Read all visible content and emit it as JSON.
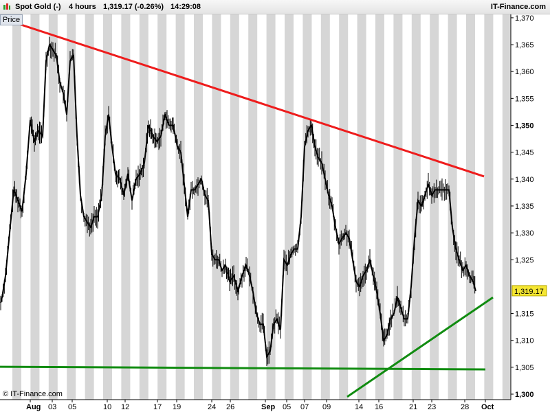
{
  "header": {
    "instrument": "Spot Gold (-)",
    "timeframe": "4 hours",
    "last": "1,319.17 (-0.26%)",
    "time": "14:29:08",
    "brand": "IT-Finance.com"
  },
  "price_badge": "Price",
  "copyright": "© IT-Finance.com",
  "last_price_label": "1,319.17",
  "colors": {
    "background": "#ffffff",
    "stripe": "#d6d6d6",
    "candle": "#000000",
    "resistance": "#ee1c1c",
    "support": "#118c11",
    "last_badge": "#f5e633"
  },
  "chart_data": {
    "type": "line",
    "title": "Spot Gold (-)",
    "ylim": [
      1300,
      1370
    ],
    "yticks": [
      {
        "value": 1370,
        "label": "1,370",
        "bold": false
      },
      {
        "value": 1365,
        "label": "1,365",
        "bold": false
      },
      {
        "value": 1360,
        "label": "1,360",
        "bold": false
      },
      {
        "value": 1355,
        "label": "1,355",
        "bold": false
      },
      {
        "value": 1350,
        "label": "1,350",
        "bold": true
      },
      {
        "value": 1345,
        "label": "1,345",
        "bold": false
      },
      {
        "value": 1340,
        "label": "1,340",
        "bold": false
      },
      {
        "value": 1335,
        "label": "1,335",
        "bold": false
      },
      {
        "value": 1330,
        "label": "1,330",
        "bold": false
      },
      {
        "value": 1325,
        "label": "1,325",
        "bold": false
      },
      {
        "value": 1315,
        "label": "1,315",
        "bold": false
      },
      {
        "value": 1310,
        "label": "1,310",
        "bold": false
      },
      {
        "value": 1305,
        "label": "1,305",
        "bold": false
      },
      {
        "value": 1300,
        "label": "1,300",
        "bold": true
      }
    ],
    "xticks": [
      {
        "label": "Aug",
        "bold": true
      },
      {
        "label": "03",
        "bold": false
      },
      {
        "label": "05",
        "bold": false
      },
      {
        "label": "10",
        "bold": false
      },
      {
        "label": "12",
        "bold": false
      },
      {
        "label": "17",
        "bold": false
      },
      {
        "label": "19",
        "bold": false
      },
      {
        "label": "24",
        "bold": false
      },
      {
        "label": "26",
        "bold": false
      },
      {
        "label": "Sep",
        "bold": true
      },
      {
        "label": "05",
        "bold": false
      },
      {
        "label": "07",
        "bold": false
      },
      {
        "label": "09",
        "bold": false
      },
      {
        "label": "14",
        "bold": false
      },
      {
        "label": "16",
        "bold": false
      },
      {
        "label": "21",
        "bold": false
      },
      {
        "label": "23",
        "bold": false
      },
      {
        "label": "28",
        "bold": false
      },
      {
        "label": "Oct",
        "bold": true
      }
    ],
    "price_path": [
      [
        1,
        1317
      ],
      [
        3,
        1318
      ],
      [
        8,
        1322
      ],
      [
        14,
        1330
      ],
      [
        20,
        1338
      ],
      [
        26,
        1336
      ],
      [
        32,
        1334
      ],
      [
        38,
        1341
      ],
      [
        44,
        1351
      ],
      [
        50,
        1347
      ],
      [
        56,
        1349
      ],
      [
        62,
        1348
      ],
      [
        67,
        1362
      ],
      [
        72,
        1365
      ],
      [
        77,
        1364
      ],
      [
        82,
        1363
      ],
      [
        87,
        1358
      ],
      [
        92,
        1356
      ],
      [
        97,
        1352
      ],
      [
        102,
        1362
      ],
      [
        107,
        1363
      ],
      [
        112,
        1348
      ],
      [
        117,
        1337
      ],
      [
        122,
        1333
      ],
      [
        127,
        1332
      ],
      [
        132,
        1331
      ],
      [
        137,
        1333
      ],
      [
        142,
        1333
      ],
      [
        148,
        1337
      ],
      [
        153,
        1348
      ],
      [
        158,
        1352
      ],
      [
        163,
        1346
      ],
      [
        168,
        1341
      ],
      [
        174,
        1340
      ],
      [
        180,
        1337
      ],
      [
        186,
        1341
      ],
      [
        192,
        1336
      ],
      [
        198,
        1340
      ],
      [
        204,
        1341
      ],
      [
        210,
        1343
      ],
      [
        216,
        1350
      ],
      [
        222,
        1348
      ],
      [
        228,
        1347
      ],
      [
        234,
        1348
      ],
      [
        240,
        1352
      ],
      [
        246,
        1350
      ],
      [
        252,
        1350
      ],
      [
        258,
        1346
      ],
      [
        263,
        1345
      ],
      [
        268,
        1339
      ],
      [
        273,
        1333
      ],
      [
        278,
        1338
      ],
      [
        283,
        1338
      ],
      [
        288,
        1339
      ],
      [
        293,
        1340
      ],
      [
        298,
        1337
      ],
      [
        303,
        1336
      ],
      [
        308,
        1326
      ],
      [
        313,
        1325
      ],
      [
        318,
        1325
      ],
      [
        323,
        1323
      ],
      [
        328,
        1324
      ],
      [
        334,
        1321
      ],
      [
        340,
        1322
      ],
      [
        346,
        1319
      ],
      [
        352,
        1322
      ],
      [
        358,
        1324
      ],
      [
        363,
        1322
      ],
      [
        368,
        1319
      ],
      [
        373,
        1315
      ],
      [
        378,
        1313
      ],
      [
        383,
        1313
      ],
      [
        388,
        1307
      ],
      [
        393,
        1308
      ],
      [
        398,
        1313
      ],
      [
        403,
        1314
      ],
      [
        408,
        1312
      ],
      [
        413,
        1325
      ],
      [
        418,
        1324
      ],
      [
        423,
        1326
      ],
      [
        428,
        1327
      ],
      [
        433,
        1327
      ],
      [
        438,
        1333
      ],
      [
        443,
        1346
      ],
      [
        448,
        1349
      ],
      [
        453,
        1350
      ],
      [
        458,
        1346
      ],
      [
        463,
        1344
      ],
      [
        468,
        1343
      ],
      [
        473,
        1340
      ],
      [
        478,
        1337
      ],
      [
        483,
        1335
      ],
      [
        488,
        1331
      ],
      [
        493,
        1328
      ],
      [
        498,
        1329
      ],
      [
        503,
        1330
      ],
      [
        508,
        1329
      ],
      [
        513,
        1325
      ],
      [
        518,
        1321
      ],
      [
        523,
        1320
      ],
      [
        528,
        1322
      ],
      [
        533,
        1323
      ],
      [
        538,
        1325
      ],
      [
        543,
        1322
      ],
      [
        548,
        1319
      ],
      [
        553,
        1315
      ],
      [
        558,
        1310
      ],
      [
        563,
        1311
      ],
      [
        568,
        1314
      ],
      [
        573,
        1315
      ],
      [
        578,
        1318
      ],
      [
        583,
        1316
      ],
      [
        588,
        1314
      ],
      [
        593,
        1314
      ],
      [
        598,
        1320
      ],
      [
        603,
        1329
      ],
      [
        608,
        1336
      ],
      [
        613,
        1335
      ],
      [
        618,
        1337
      ],
      [
        623,
        1339
      ],
      [
        628,
        1337
      ],
      [
        633,
        1338
      ],
      [
        638,
        1338
      ],
      [
        643,
        1338
      ],
      [
        648,
        1338
      ],
      [
        653,
        1338
      ],
      [
        658,
        1331
      ],
      [
        663,
        1327
      ],
      [
        668,
        1325
      ],
      [
        673,
        1323
      ],
      [
        678,
        1324
      ],
      [
        683,
        1322
      ],
      [
        688,
        1321
      ],
      [
        692,
        1319.17
      ]
    ],
    "lines": [
      {
        "name": "",
        "x1": 0,
        "y1": 1370,
        "x2": 704,
        "y2": 1340.5,
        "color": "#ee1c1c"
      },
      {
        "name": "",
        "x1": 0,
        "y1": 1305.1,
        "x2": 706,
        "y2": 1304.6,
        "color": "#118c11"
      },
      {
        "name": "",
        "x1": 505,
        "y1": 1299.5,
        "x2": 717,
        "y2": 1318,
        "color": "#118c11"
      }
    ],
    "grid": false,
    "legend": "none"
  }
}
